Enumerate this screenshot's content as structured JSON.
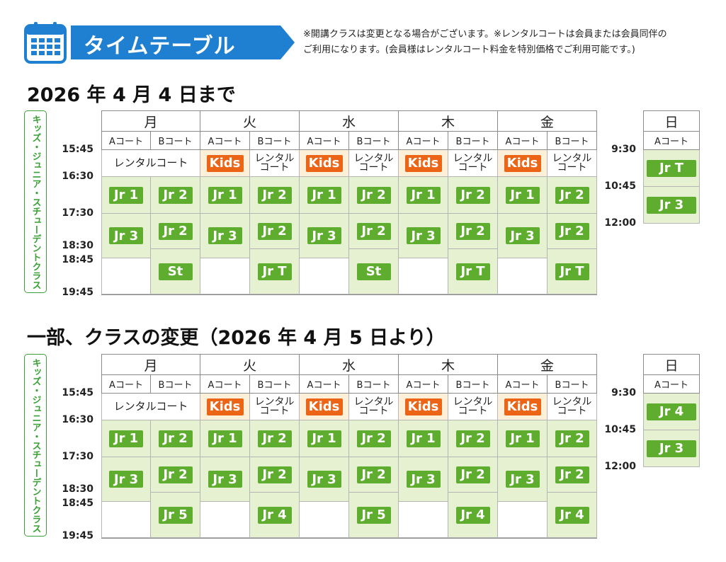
{
  "header": {
    "title": "タイムテーブル",
    "notice_line1": "※開講クラスは変更となる場合がございます。※レンタルコートは会員または会員同伴の",
    "notice_line2": "ご利用になります。(会員様はレンタルコート料金を特別価格でご利用可能です。)"
  },
  "colors": {
    "blue": "#1f7fd0",
    "green": "#5fad2e",
    "orange": "#ec6517",
    "cell_green": "#e6f1d2"
  },
  "side_label": "キッズ・ジュニア・スチューデントクラス",
  "days": [
    "月",
    "火",
    "水",
    "木",
    "金"
  ],
  "sunday": "日",
  "courts": {
    "a": "Aコート",
    "b": "Bコート"
  },
  "rental_full": "レンタルコート",
  "rental_l1": "レンタル",
  "rental_l2": "コート",
  "times_weekday": [
    "15:45",
    "16:30",
    "17:30",
    "18:30",
    "18:45",
    "19:45"
  ],
  "times_sunday": [
    "9:30",
    "10:45",
    "12:00"
  ],
  "tables": [
    {
      "title": "2026 年 4 月 4 日まで",
      "weekday": {
        "row1": [
          "レンタルコート",
          "Kids",
          "レンタルコート",
          "Kids",
          "レンタルコート",
          "Kids",
          "レンタルコート",
          "Kids",
          "レンタルコート"
        ],
        "row2": [
          "Jr 1",
          "Jr 2",
          "Jr 1",
          "Jr 2",
          "Jr 1",
          "Jr 2",
          "Jr 1",
          "Jr 2",
          "Jr 1",
          "Jr 2"
        ],
        "row3a": [
          "Jr 3",
          "Jr 3",
          "Jr 3",
          "Jr 3",
          "Jr 3"
        ],
        "row3b": [
          "Jr 2",
          "Jr 2",
          "Jr 2",
          "Jr 2",
          "Jr 2"
        ],
        "row4b": [
          "St",
          "Jr T",
          "St",
          "Jr T",
          "Jr T"
        ]
      },
      "sunday": [
        "Jr T",
        "Jr 3"
      ]
    },
    {
      "title": "一部、クラスの変更（2026 年 4 月 5 日より）",
      "weekday": {
        "row1": [
          "レンタルコート",
          "Kids",
          "レンタルコート",
          "Kids",
          "レンタルコート",
          "Kids",
          "レンタルコート",
          "Kids",
          "レンタルコート"
        ],
        "row2": [
          "Jr 1",
          "Jr 2",
          "Jr 1",
          "Jr 2",
          "Jr 1",
          "Jr 2",
          "Jr 1",
          "Jr 2",
          "Jr 1",
          "Jr 2"
        ],
        "row3a": [
          "Jr 3",
          "Jr 3",
          "Jr 3",
          "Jr 3",
          "Jr 3"
        ],
        "row3b": [
          "Jr 2",
          "Jr 2",
          "Jr 2",
          "Jr 2",
          "Jr 2"
        ],
        "row4b": [
          "Jr 5",
          "Jr 4",
          "Jr 5",
          "Jr 4",
          "Jr 4"
        ]
      },
      "sunday": [
        "Jr 4",
        "Jr 3"
      ]
    }
  ]
}
